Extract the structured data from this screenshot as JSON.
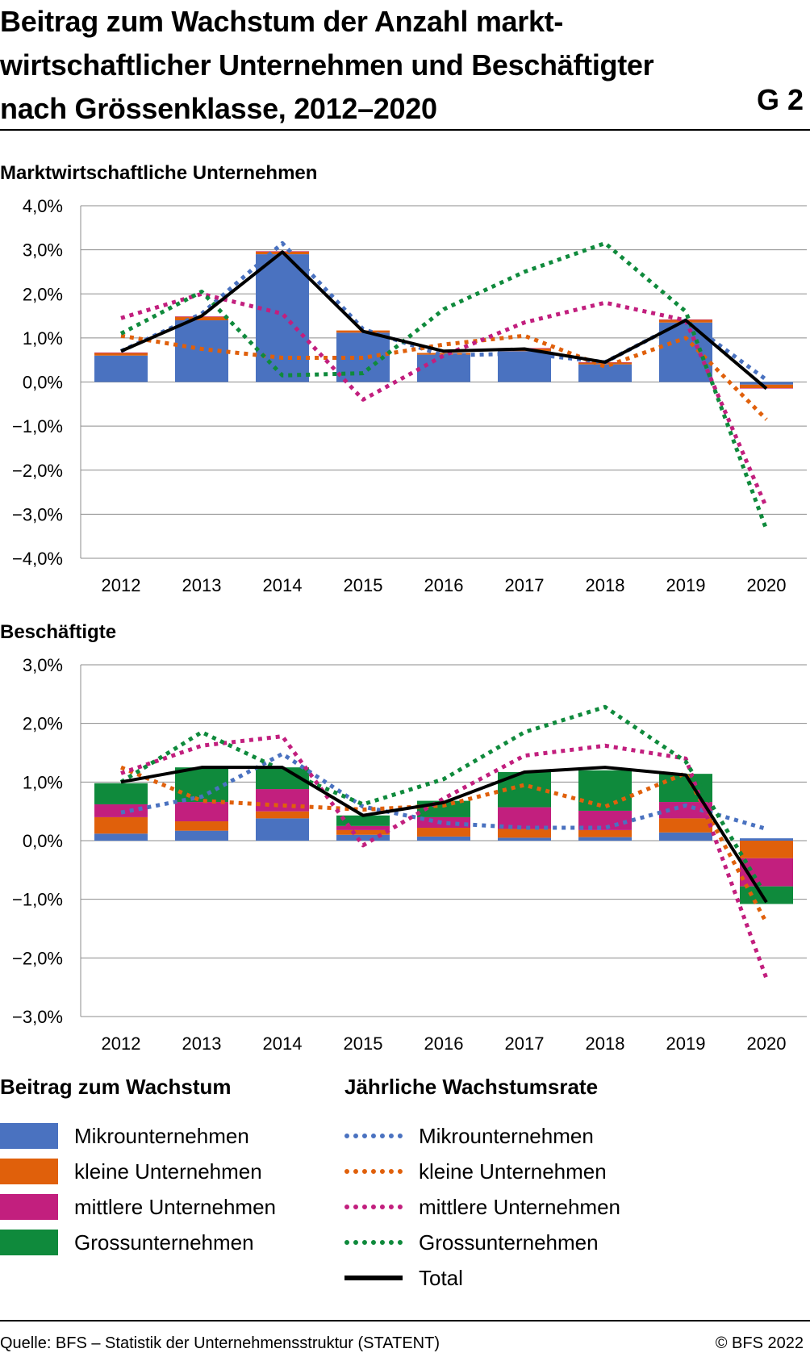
{
  "header": {
    "title_lines": [
      "Beitrag zum Wachstum der Anzahl markt-",
      "wirtschaftlicher Unternehmen und Beschäftigter",
      "nach Grössenklasse, 2012–2020"
    ],
    "chart_number": "G 2"
  },
  "colors": {
    "micro": "#4a72c0",
    "small": "#e0600b",
    "medium": "#c21f7e",
    "large": "#0f8a3c",
    "total": "#000000",
    "grid": "#8c8c8c"
  },
  "chart_data": [
    {
      "type": "bar",
      "subtitle": "Marktwirtschaftliche Unternehmen",
      "categories": [
        "2012",
        "2013",
        "2014",
        "2015",
        "2016",
        "2017",
        "2018",
        "2019",
        "2020"
      ],
      "ylim": [
        -4,
        4
      ],
      "yticks": [
        4,
        3,
        2,
        1,
        0,
        -1,
        -2,
        -3,
        -4
      ],
      "ytick_labels": [
        "4,0%",
        "3,0%",
        "2,0%",
        "1,0%",
        "0,0%",
        "−1,0%",
        "−2,0%",
        "−3,0%",
        "−4,0%"
      ],
      "stacked_bars": [
        {
          "name": "Mikrounternehmen",
          "values": [
            0.6,
            1.4,
            2.9,
            1.12,
            0.62,
            0.7,
            0.4,
            1.35,
            -0.06
          ]
        },
        {
          "name": "kleine Unternehmen",
          "values": [
            0.06,
            0.08,
            0.06,
            0.05,
            0.04,
            0.06,
            0.04,
            0.06,
            -0.08
          ]
        },
        {
          "name": "mittlere Unternehmen",
          "values": [
            0.01,
            0.01,
            0.01,
            0.0,
            0.0,
            0.01,
            0.01,
            0.01,
            -0.01
          ]
        },
        {
          "name": "Grossunternehmen",
          "values": [
            0.0,
            0.0,
            0.0,
            0.0,
            0.0,
            0.0,
            0.0,
            0.0,
            0.0
          ]
        }
      ],
      "rate_lines": [
        {
          "name": "Mikrounternehmen",
          "values": [
            0.7,
            1.55,
            3.15,
            1.2,
            0.6,
            0.65,
            0.45,
            1.4,
            0.05
          ]
        },
        {
          "name": "kleine Unternehmen",
          "values": [
            1.05,
            0.75,
            0.55,
            0.55,
            0.85,
            1.05,
            0.35,
            1.0,
            -0.85
          ]
        },
        {
          "name": "mittlere Unternehmen",
          "values": [
            1.45,
            2.0,
            1.55,
            -0.4,
            0.6,
            1.35,
            1.8,
            1.4,
            -2.85
          ]
        },
        {
          "name": "Grossunternehmen",
          "values": [
            1.1,
            2.05,
            0.15,
            0.2,
            1.65,
            2.5,
            3.15,
            1.6,
            -3.35
          ]
        }
      ],
      "total": {
        "name": "Total",
        "values": [
          0.7,
          1.5,
          2.95,
          1.15,
          0.7,
          0.75,
          0.45,
          1.4,
          -0.15
        ]
      }
    },
    {
      "type": "bar",
      "subtitle": "Beschäftigte",
      "categories": [
        "2012",
        "2013",
        "2014",
        "2015",
        "2016",
        "2017",
        "2018",
        "2019",
        "2020"
      ],
      "ylim": [
        -3,
        3
      ],
      "yticks": [
        3,
        2,
        1,
        0,
        -1,
        -2,
        -3
      ],
      "ytick_labels": [
        "3,0%",
        "2,0%",
        "1,0%",
        "0,0%",
        "−1,0%",
        "−2,0%",
        "−3,0%"
      ],
      "stacked_bars": [
        {
          "name": "Mikrounternehmen",
          "values": [
            0.12,
            0.17,
            0.38,
            0.1,
            0.07,
            0.05,
            0.06,
            0.14,
            0.04
          ]
        },
        {
          "name": "kleine Unternehmen",
          "values": [
            0.28,
            0.16,
            0.12,
            0.08,
            0.15,
            0.15,
            0.12,
            0.24,
            -0.3
          ]
        },
        {
          "name": "mittlere Unternehmen",
          "values": [
            0.22,
            0.33,
            0.38,
            0.07,
            0.18,
            0.37,
            0.33,
            0.28,
            -0.48
          ]
        },
        {
          "name": "Grossunternehmen",
          "values": [
            0.36,
            0.59,
            0.37,
            0.18,
            0.28,
            0.6,
            0.69,
            0.48,
            -0.3
          ]
        }
      ],
      "rate_lines": [
        {
          "name": "Mikrounternehmen",
          "values": [
            0.48,
            0.75,
            1.48,
            0.58,
            0.3,
            0.22,
            0.22,
            0.6,
            0.2
          ]
        },
        {
          "name": "kleine Unternehmen",
          "values": [
            1.25,
            0.68,
            0.6,
            0.53,
            0.6,
            0.95,
            0.58,
            1.15,
            -1.4
          ]
        },
        {
          "name": "mittlere Unternehmen",
          "values": [
            1.15,
            1.62,
            1.78,
            -0.08,
            0.72,
            1.45,
            1.62,
            1.4,
            -2.35
          ]
        },
        {
          "name": "Grossunternehmen",
          "values": [
            1.0,
            1.85,
            1.2,
            0.62,
            1.05,
            1.85,
            2.28,
            1.35,
            -0.95
          ]
        }
      ],
      "total": {
        "name": "Total",
        "values": [
          1.0,
          1.25,
          1.25,
          0.43,
          0.65,
          1.17,
          1.25,
          1.12,
          -1.05
        ]
      }
    }
  ],
  "legend": {
    "contrib_title": "Beitrag zum Wachstum",
    "rate_title": "Jährliche Wachstumsrate",
    "contrib_items": [
      "Mikrounternehmen",
      "kleine Unternehmen",
      "mittlere Unternehmen",
      "Grossunternehmen"
    ],
    "rate_items": [
      "Mikrounternehmen",
      "kleine Unternehmen",
      "mittlere Unternehmen",
      "Grossunternehmen",
      "Total"
    ]
  },
  "footer": {
    "source": "Quelle: BFS – Statistik der Unternehmensstruktur (STATENT)",
    "copyright": "© BFS 2022"
  }
}
